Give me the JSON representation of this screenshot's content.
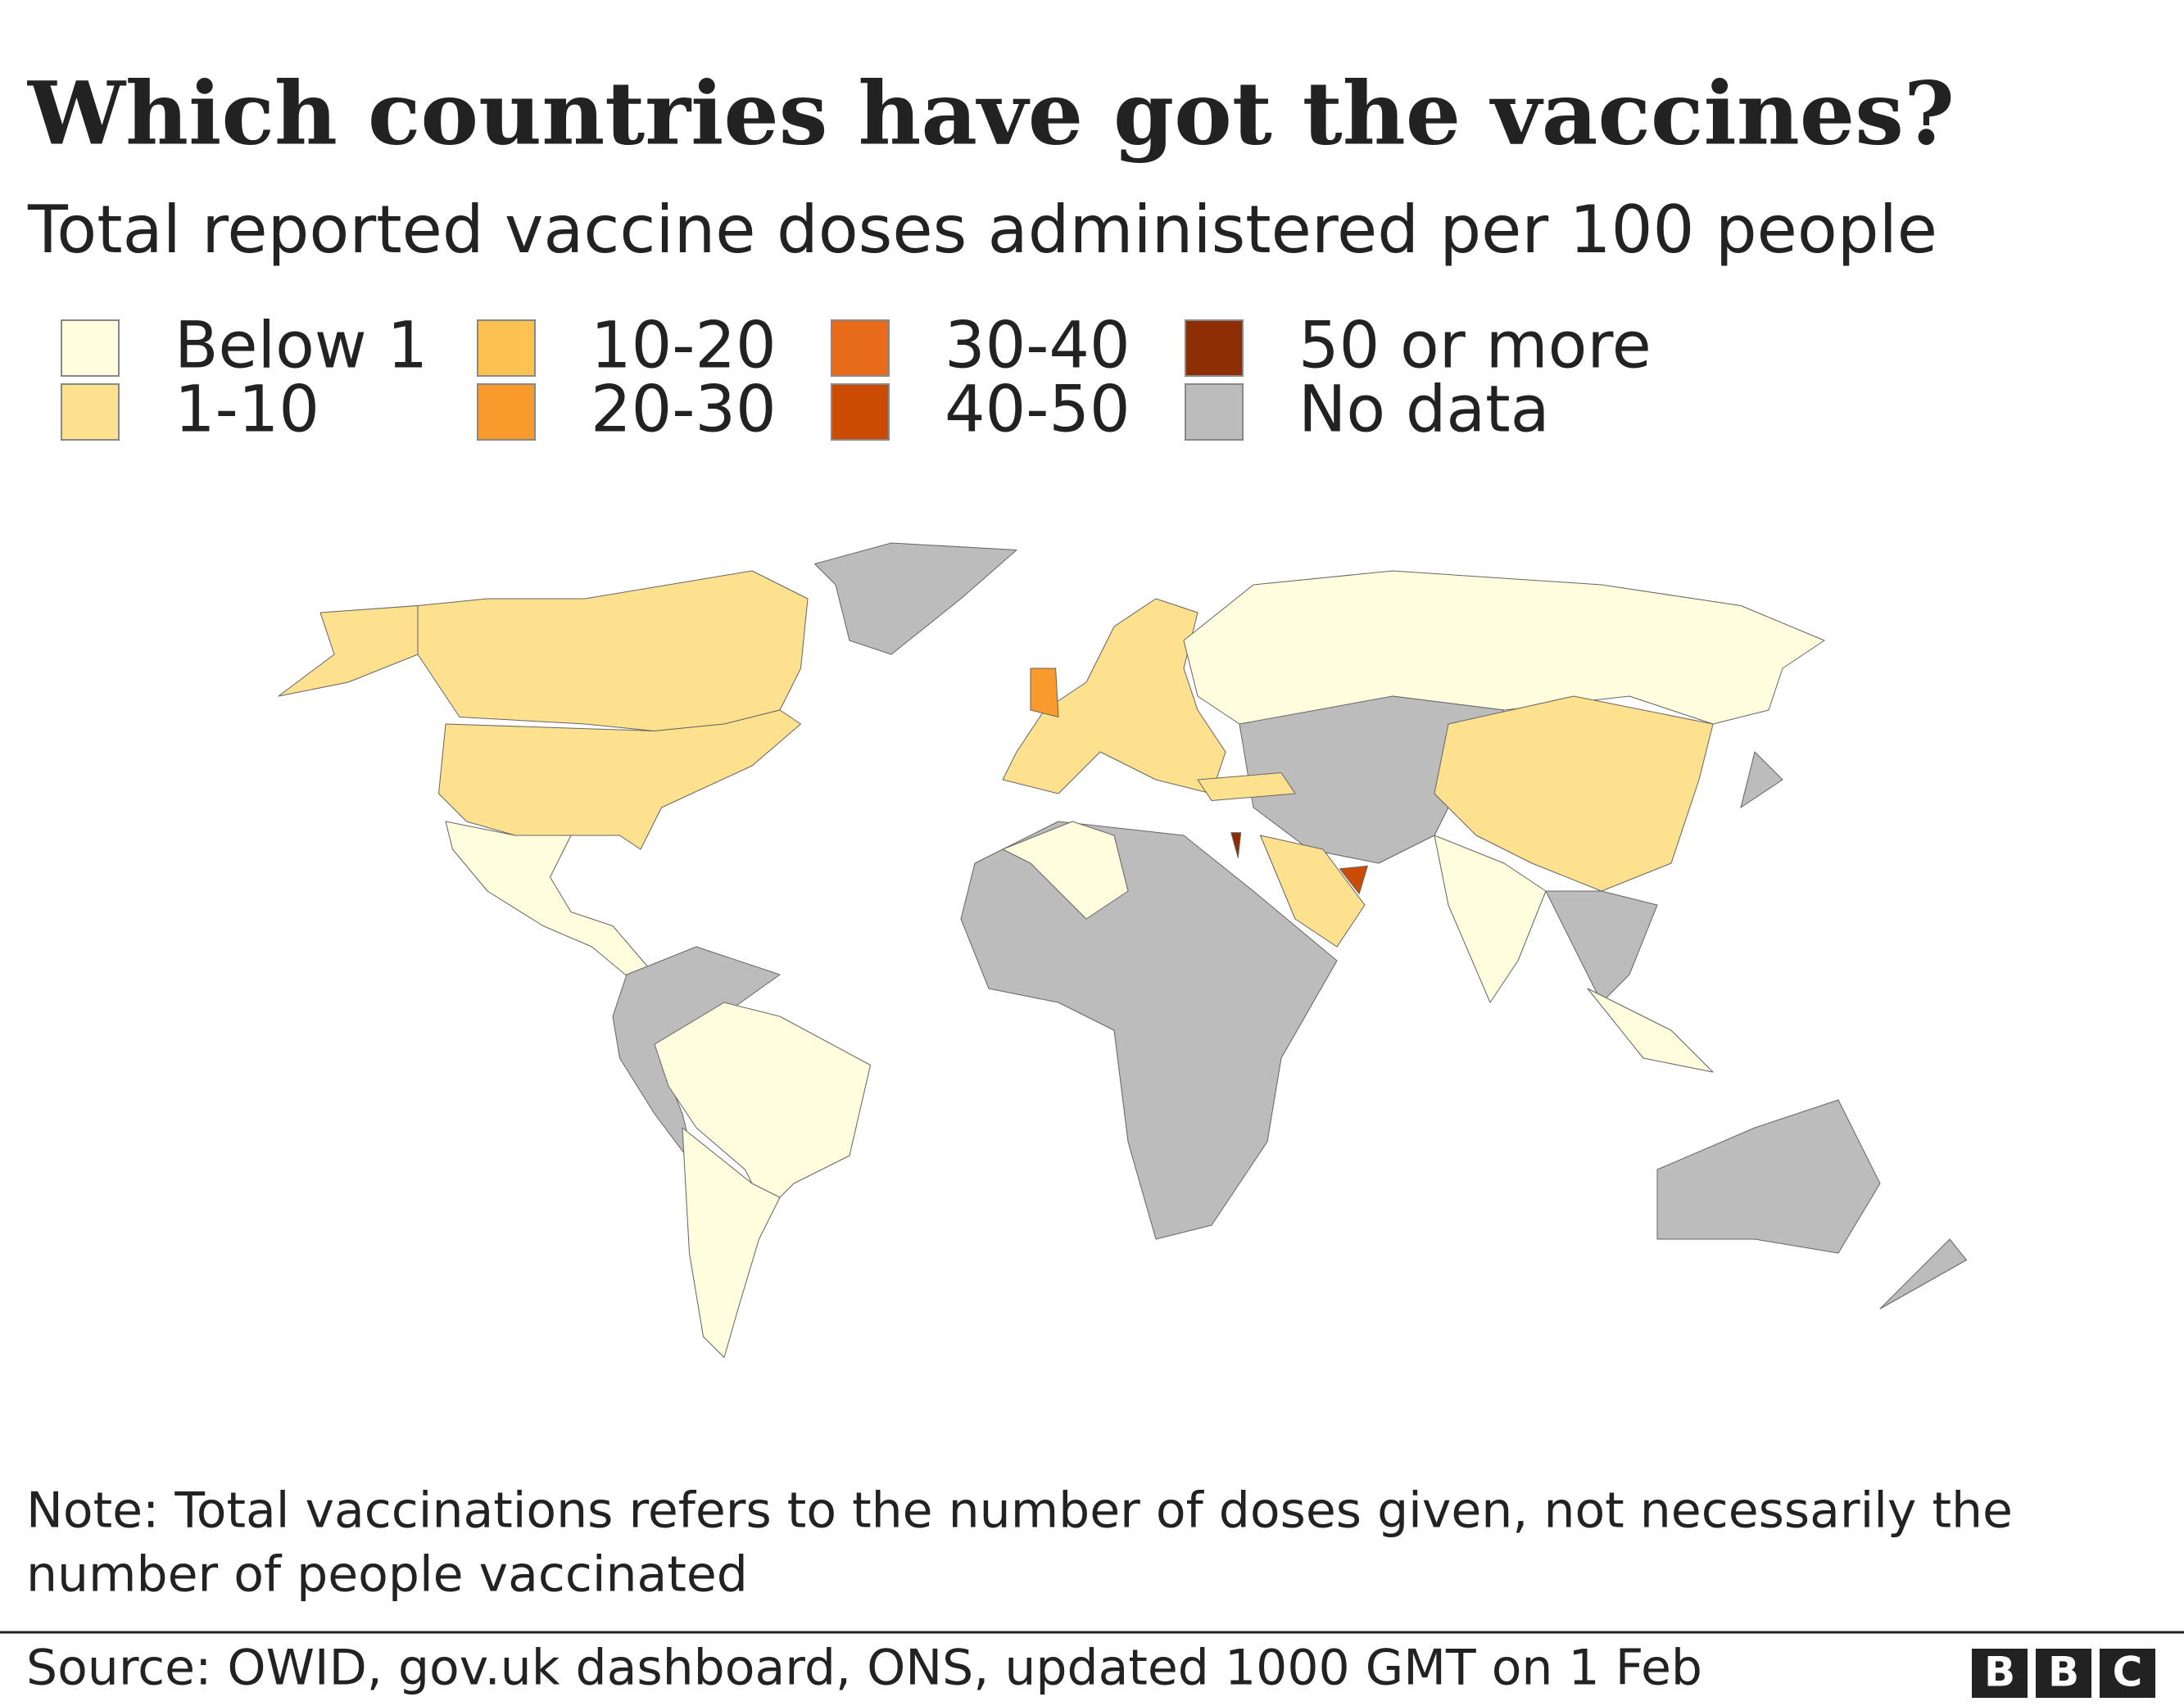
{
  "title": "Which countries have got the vaccines?",
  "subtitle": "Total reported vaccine doses administered per 100 people",
  "legend": [
    {
      "label": "Below 1",
      "color": "#fefedf"
    },
    {
      "label": "1-10",
      "color": "#fde18f"
    },
    {
      "label": "10-20",
      "color": "#fbc252"
    },
    {
      "label": "20-30",
      "color": "#f99a2c"
    },
    {
      "label": "30-40",
      "color": "#e86b1a"
    },
    {
      "label": "40-50",
      "color": "#cb4b05"
    },
    {
      "label": "50 or more",
      "color": "#8c2d04"
    },
    {
      "label": "No data",
      "color": "#bcbcbc"
    }
  ],
  "note": [
    "Note: Total vaccinations refers to the number of doses given, not necessarily the",
    "number of people vaccinated"
  ],
  "source": "Source: OWID, gov.uk dashboard, ONS, updated 1000 GMT on 1 Feb",
  "logo": [
    "B",
    "B",
    "C"
  ]
}
